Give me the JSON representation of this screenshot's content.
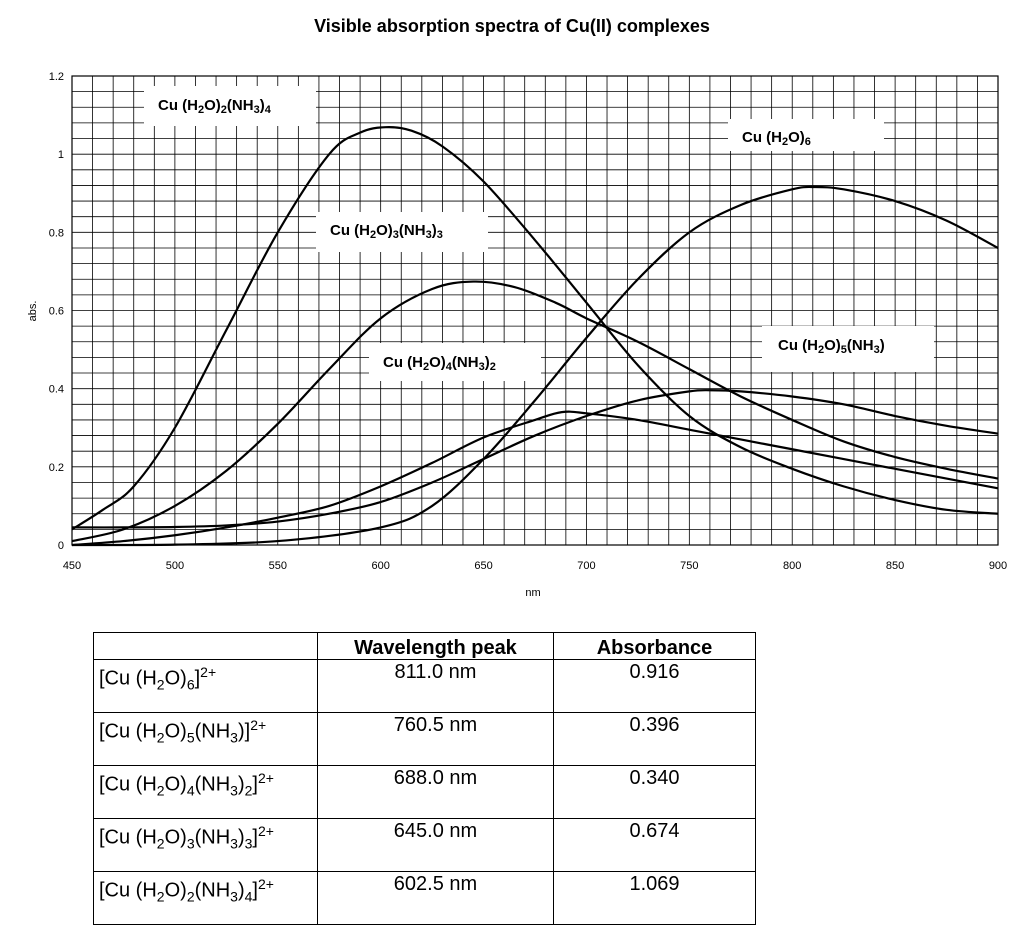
{
  "chart_data": {
    "type": "line",
    "title": "Visible absorption spectra of Cu(II) complexes",
    "xlabel": "nm",
    "ylabel": "abs.",
    "xlim": [
      450,
      900
    ],
    "ylim": [
      0,
      1.2
    ],
    "xticks": [
      450,
      500,
      550,
      600,
      650,
      700,
      750,
      800,
      850,
      900
    ],
    "yticks": [
      0,
      0.2,
      0.4,
      0.6,
      0.8,
      1,
      1.2
    ],
    "ytick_labels": [
      "0",
      "0.2",
      "0.4",
      "0.6",
      "0.8",
      "1",
      "1.2"
    ],
    "grid": true,
    "series": [
      {
        "name": "Cu (H2O)6",
        "label": [
          "Cu (H",
          "2",
          "O)",
          "6",
          ""
        ],
        "x": [
          450,
          500,
          550,
          600,
          625,
          650,
          675,
          700,
          725,
          750,
          775,
          800,
          811,
          825,
          850,
          875,
          900
        ],
        "y": [
          0,
          0.001,
          0.01,
          0.045,
          0.1,
          0.22,
          0.37,
          0.53,
          0.68,
          0.8,
          0.87,
          0.91,
          0.916,
          0.91,
          0.88,
          0.83,
          0.76
        ]
      },
      {
        "name": "Cu (H2O)5(NH3)",
        "label": [
          "Cu (H",
          "2",
          "O)",
          "5",
          "(NH",
          "3",
          ")"
        ],
        "x": [
          450,
          475,
          500,
          525,
          550,
          575,
          600,
          625,
          650,
          675,
          700,
          725,
          750,
          760.5,
          775,
          800,
          825,
          850,
          875,
          900
        ],
        "y": [
          0.045,
          0.045,
          0.046,
          0.05,
          0.06,
          0.08,
          0.11,
          0.16,
          0.22,
          0.28,
          0.33,
          0.37,
          0.393,
          0.396,
          0.393,
          0.38,
          0.36,
          0.33,
          0.305,
          0.285
        ]
      },
      {
        "name": "Cu (H2O)4(NH3)2",
        "label": [
          "Cu (H",
          "2",
          "O)",
          "4",
          "(NH",
          "3",
          ")",
          "2",
          ""
        ],
        "x": [
          450,
          475,
          500,
          525,
          550,
          575,
          600,
          625,
          650,
          675,
          688,
          700,
          725,
          750,
          775,
          800,
          825,
          850,
          875,
          900
        ],
        "y": [
          0,
          0.01,
          0.025,
          0.045,
          0.07,
          0.1,
          0.15,
          0.21,
          0.275,
          0.32,
          0.34,
          0.337,
          0.32,
          0.295,
          0.27,
          0.245,
          0.22,
          0.195,
          0.17,
          0.145
        ]
      },
      {
        "name": "Cu (H2O)3(NH3)3",
        "label": [
          "Cu (H",
          "2",
          "O)",
          "3",
          "(NH",
          "3",
          ")",
          "3",
          ""
        ],
        "x": [
          450,
          475,
          500,
          525,
          550,
          575,
          600,
          625,
          645,
          665,
          685,
          700,
          725,
          750,
          775,
          800,
          825,
          850,
          875,
          900
        ],
        "y": [
          0.01,
          0.04,
          0.1,
          0.19,
          0.31,
          0.45,
          0.58,
          0.655,
          0.674,
          0.66,
          0.62,
          0.58,
          0.52,
          0.45,
          0.38,
          0.32,
          0.265,
          0.225,
          0.195,
          0.17
        ]
      },
      {
        "name": "Cu (H2O)2(NH3)4",
        "label": [
          "Cu (H",
          "2",
          "O)",
          "2",
          "(NH",
          "3",
          ")",
          "4",
          ""
        ],
        "x": [
          450,
          465,
          480,
          500,
          525,
          550,
          575,
          590,
          602.5,
          615,
          630,
          650,
          675,
          700,
          725,
          750,
          775,
          800,
          825,
          850,
          875,
          900
        ],
        "y": [
          0.04,
          0.09,
          0.15,
          0.3,
          0.55,
          0.8,
          1.0,
          1.055,
          1.069,
          1.06,
          1.02,
          0.93,
          0.78,
          0.62,
          0.46,
          0.33,
          0.25,
          0.195,
          0.15,
          0.115,
          0.09,
          0.08
        ]
      }
    ]
  },
  "table": {
    "headers": [
      "",
      "Wavelength peak",
      "Absorbance"
    ],
    "rows": [
      {
        "base": "[Cu (H",
        "s1": "2",
        "m1": "O)",
        "s2": "6",
        "m2": "",
        "s3": "",
        "m3": "",
        "s4": "",
        "end": "]",
        "sup": "2+",
        "peak": "811.0 nm",
        "abs": "0.916"
      },
      {
        "base": "[Cu (H",
        "s1": "2",
        "m1": "O)",
        "s2": "5",
        "m2": "(NH",
        "s3": "3",
        "m3": ")",
        "s4": "",
        "end": "]",
        "sup": "2+",
        "peak": "760.5 nm",
        "abs": "0.396"
      },
      {
        "base": "[Cu (H",
        "s1": "2",
        "m1": "O)",
        "s2": "4",
        "m2": "(NH",
        "s3": "3",
        "m3": ")",
        "s4": "2",
        "end": "]",
        "sup": "2+",
        "peak": "688.0 nm",
        "abs": "0.340"
      },
      {
        "base": "[Cu (H",
        "s1": "2",
        "m1": "O)",
        "s2": "3",
        "m2": "(NH",
        "s3": "3",
        "m3": ")",
        "s4": "3",
        "end": "]",
        "sup": "2+",
        "peak": "645.0 nm",
        "abs": "0.674"
      },
      {
        "base": "[Cu (H",
        "s1": "2",
        "m1": "O)",
        "s2": "2",
        "m2": "(NH",
        "s3": "3",
        "m3": ")",
        "s4": "4",
        "end": "]",
        "sup": "2+",
        "peak": "602.5 nm",
        "abs": "1.069"
      }
    ]
  }
}
